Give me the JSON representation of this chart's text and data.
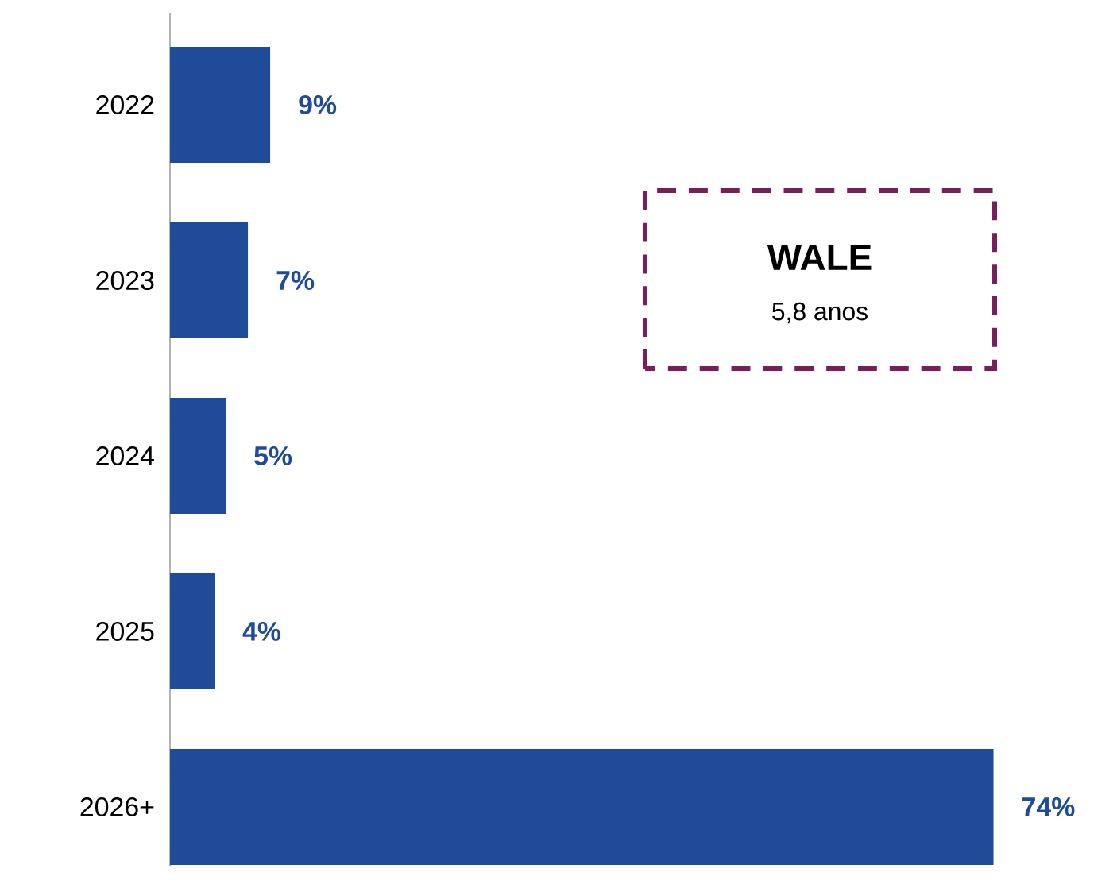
{
  "chart_data": {
    "type": "bar",
    "orientation": "horizontal",
    "categories": [
      "2022",
      "2023",
      "2024",
      "2025",
      "2026+"
    ],
    "values": [
      9,
      7,
      5,
      4,
      74
    ],
    "value_labels": [
      "9%",
      "7%",
      "5%",
      "4%",
      "74%"
    ],
    "color": "#1f4b98",
    "annotations": [
      "WALE",
      "5,8 anos"
    ]
  }
}
